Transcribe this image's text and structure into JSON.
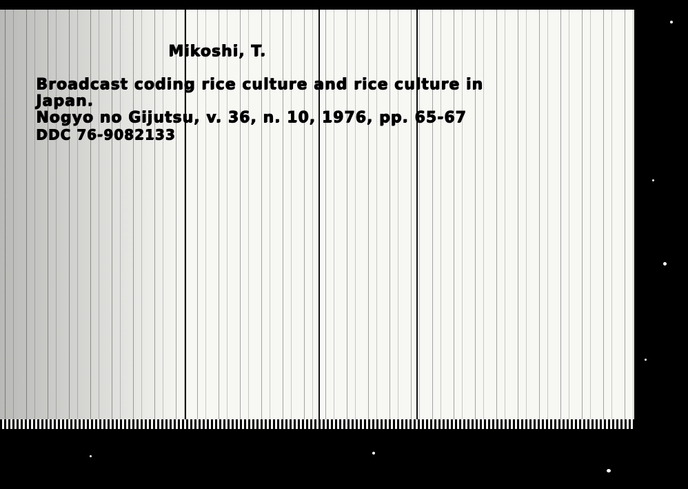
{
  "card": {
    "author": "Mikoshi, T.",
    "title": "Broadcast coding rice culture and rice culture in",
    "title_cont": "Japan.",
    "source_journal": "Nogyo no Gijutsu,",
    "source_details": "v. 36, n. 10, 1976, pp. 65-67",
    "call_number": "DDC 76-9082133"
  }
}
